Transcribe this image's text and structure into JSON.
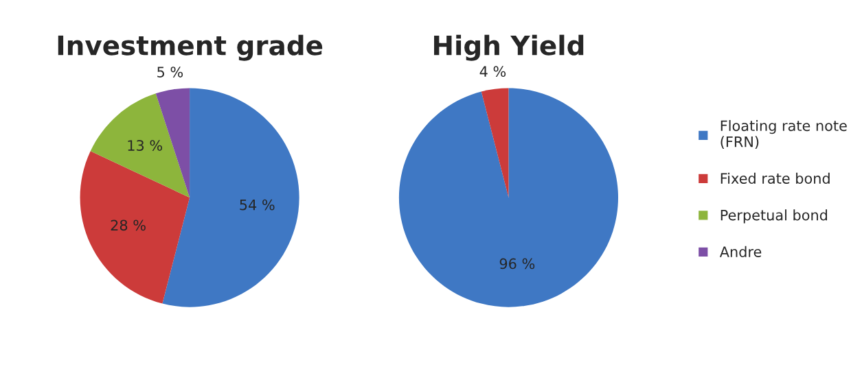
{
  "chart_data": [
    {
      "type": "pie",
      "title": "Investment grade",
      "categories": [
        "Floating rate note (FRN)",
        "Fixed rate bond",
        "Perpetual bond",
        "Andre"
      ],
      "values": [
        54,
        28,
        13,
        5
      ],
      "colors": [
        "#3f78c4",
        "#cc3b3a",
        "#8db53c",
        "#7d4fa6"
      ],
      "value_labels": [
        "54 %",
        "28 %",
        "13 %",
        "5 %"
      ],
      "legend": "right"
    },
    {
      "type": "pie",
      "title": "High Yield",
      "categories": [
        null,
        null
      ],
      "values": [
        96,
        4
      ],
      "colors": [
        "#3f78c4",
        "#cc3b3a"
      ],
      "value_labels": [
        "96 %",
        "4 %"
      ]
    }
  ]
}
